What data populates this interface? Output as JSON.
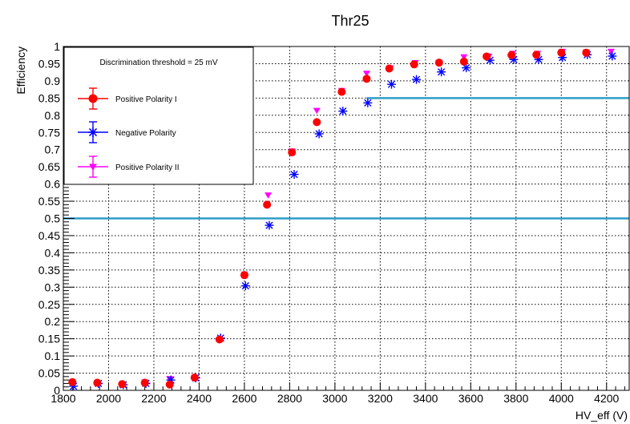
{
  "chart_data": {
    "type": "scatter",
    "title": "Thr25",
    "xlabel": "HV_eff (V)",
    "ylabel": "Efficiency",
    "xlim": [
      1800,
      4300
    ],
    "ylim": [
      0,
      1
    ],
    "xticks": [
      1800,
      2000,
      2200,
      2400,
      2600,
      2800,
      3000,
      3200,
      3400,
      3600,
      3800,
      4000,
      4200
    ],
    "xtick_labels": [
      "1800",
      "2000",
      "2200",
      "2400",
      "2600",
      "2800",
      "3000",
      "3200",
      "3400",
      "3600",
      "3800",
      "4000",
      "4200"
    ],
    "yticks": [
      0,
      0.05,
      0.1,
      0.15,
      0.2,
      0.25,
      0.3,
      0.35,
      0.4,
      0.45,
      0.5,
      0.55,
      0.6,
      0.65,
      0.7,
      0.75,
      0.8,
      0.85,
      0.9,
      0.95,
      1
    ],
    "ytick_labels": [
      "0",
      "0.05",
      "0.1",
      "0.15",
      "0.2",
      "0.25",
      "0.3",
      "0.35",
      "0.4",
      "0.45",
      "0.5",
      "0.55",
      "0.6",
      "0.65",
      "0.7",
      "0.75",
      "0.8",
      "0.85",
      "0.9",
      "0.95",
      "1"
    ],
    "grid": true,
    "legend_position": "top-left",
    "legend_header": "Discrimination threshold = 25 mV",
    "hlines": [
      {
        "y": 0.5,
        "color": "#2e9ec8"
      },
      {
        "y": 0.85,
        "color": "#2e9ec8",
        "x_start": 3140
      }
    ],
    "series": [
      {
        "name": "Positive Polarity I",
        "marker": "circle",
        "color": "#ff0000",
        "x": [
          1840,
          1950,
          2060,
          2160,
          2270,
          2380,
          2490,
          2600,
          2700,
          2810,
          2920,
          3030,
          3140,
          3240,
          3350,
          3460,
          3570,
          3670,
          3780,
          3890,
          4000,
          4110
        ],
        "y": [
          0.024,
          0.022,
          0.018,
          0.022,
          0.017,
          0.037,
          0.148,
          0.335,
          0.54,
          0.692,
          0.78,
          0.868,
          0.906,
          0.936,
          0.948,
          0.953,
          0.956,
          0.971,
          0.975,
          0.976,
          0.982,
          0.982
        ]
      },
      {
        "name": "Negative Polarity",
        "marker": "star",
        "color": "#0000ff",
        "x": [
          1845,
          1955,
          2065,
          2165,
          2275,
          2385,
          2495,
          2605,
          2710,
          2820,
          2930,
          3035,
          3145,
          3250,
          3360,
          3470,
          3580,
          3685,
          3790,
          3900,
          4005,
          4115,
          4225
        ],
        "y": [
          0.012,
          0.02,
          0.016,
          0.02,
          0.03,
          0.036,
          0.152,
          0.304,
          0.48,
          0.628,
          0.746,
          0.812,
          0.836,
          0.89,
          0.904,
          0.926,
          0.938,
          0.96,
          0.962,
          0.962,
          0.968,
          0.976,
          0.972
        ]
      },
      {
        "name": "Positive Polarity II",
        "marker": "triangle-down",
        "color": "#ff00ff",
        "x": [
          1840,
          1950,
          2060,
          2160,
          2270,
          2380,
          2490,
          2600,
          2705,
          2810,
          2920,
          3030,
          3140,
          3245,
          3355,
          3460,
          3570,
          3680,
          3785,
          3895,
          4005,
          4110,
          4220
        ],
        "y": [
          0.018,
          0.02,
          0.018,
          0.024,
          0.034,
          0.038,
          0.146,
          0.338,
          0.568,
          0.696,
          0.814,
          0.872,
          0.922,
          0.938,
          0.953,
          0.954,
          0.97,
          0.972,
          0.98,
          0.98,
          0.986,
          0.984,
          0.986
        ]
      }
    ]
  }
}
